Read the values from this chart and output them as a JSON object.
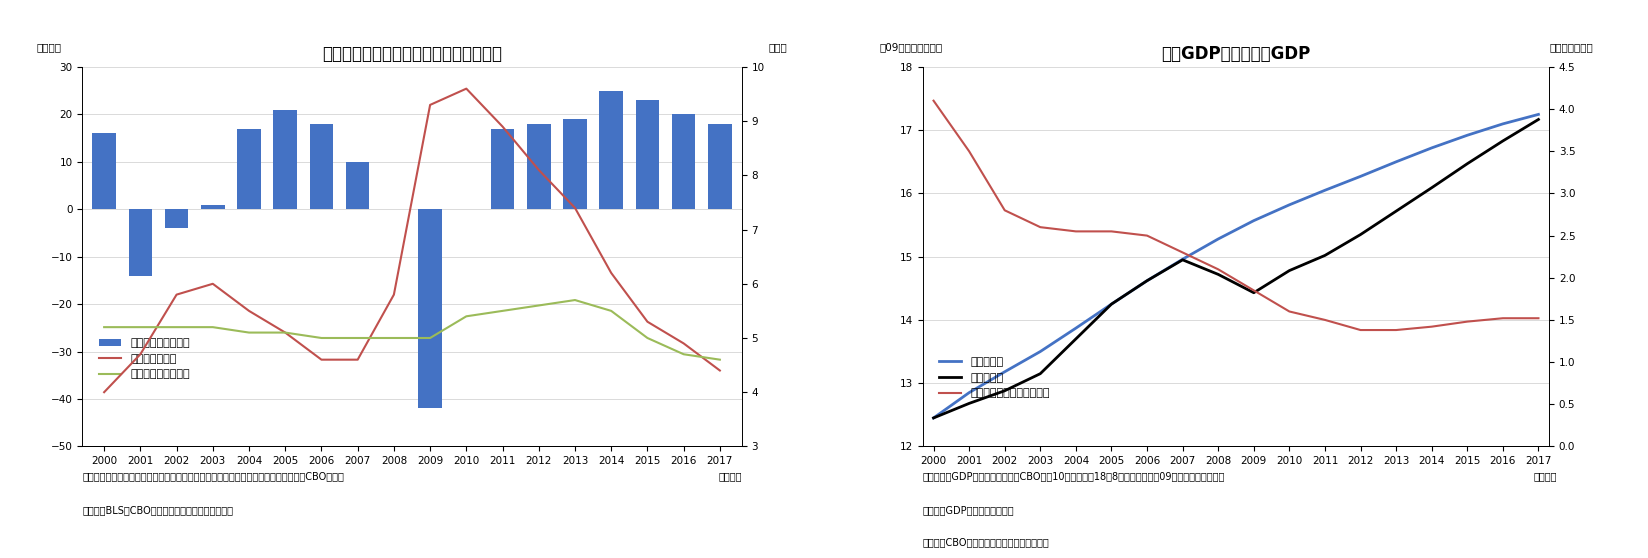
{
  "chart1": {
    "title": "非農業部門雇用者数および失業率の推移",
    "ylabel_left": "（万人）",
    "ylabel_right": "（％）",
    "xlabel": "（年次）",
    "years": [
      2000,
      2001,
      2002,
      2003,
      2004,
      2005,
      2006,
      2007,
      2008,
      2009,
      2010,
      2011,
      2012,
      2013,
      2014,
      2015,
      2016,
      2017
    ],
    "bar_values": [
      16,
      -14,
      -4,
      1,
      17,
      21,
      18,
      10,
      0,
      -42,
      0,
      17,
      18,
      19,
      25,
      23,
      20,
      18
    ],
    "bar_color": "#4472C4",
    "unemployment_rate": [
      4.0,
      4.7,
      5.8,
      6.0,
      5.5,
      5.1,
      4.6,
      4.6,
      5.8,
      9.3,
      9.6,
      8.9,
      8.1,
      7.4,
      6.2,
      5.3,
      4.9,
      4.4
    ],
    "natural_unemployment": [
      5.2,
      5.2,
      5.2,
      5.2,
      5.1,
      5.1,
      5.0,
      5.0,
      5.0,
      5.0,
      5.4,
      5.5,
      5.6,
      5.7,
      5.5,
      5.0,
      4.7,
      4.6
    ],
    "unemployment_color": "#C0504D",
    "natural_unemployment_color": "#9BBB59",
    "ylim_left": [
      -50,
      30
    ],
    "ylim_right": [
      3,
      10
    ],
    "yticks_left": [
      -50,
      -40,
      -30,
      -20,
      -10,
      0,
      10,
      20,
      30
    ],
    "yticks_right": [
      3,
      4,
      5,
      6,
      7,
      8,
      9,
      10
    ],
    "note1": "（注）非農業部門雇用者数は、雇用統計事業所調査の月間平均増減数。自然失業率はCBO試算。",
    "note2": "（資料）BLS、CBOよりニッセイ基礎研究所作成。",
    "legend_bar": "非農業部門雇用者数",
    "legend_unemp": "失業率（右軸）",
    "legend_nat": "自然失業率（右軸）"
  },
  "chart2": {
    "title": "潜在GDPおよび実績GDP",
    "ylabel_left": "（09年基準兆ドル）",
    "ylabel_right": "（前年比、％）",
    "xlabel": "（年次）",
    "years": [
      2000,
      2001,
      2002,
      2003,
      2004,
      2005,
      2006,
      2007,
      2008,
      2009,
      2010,
      2011,
      2012,
      2013,
      2014,
      2015,
      2016,
      2017
    ],
    "potential_gdp": [
      12.45,
      12.85,
      13.18,
      13.5,
      13.87,
      14.25,
      14.62,
      14.96,
      15.28,
      15.57,
      15.82,
      16.05,
      16.27,
      16.5,
      16.72,
      16.92,
      17.1,
      17.25
    ],
    "actual_gdp": [
      12.45,
      12.68,
      12.88,
      13.15,
      13.7,
      14.25,
      14.62,
      14.95,
      14.72,
      14.43,
      14.78,
      15.02,
      15.35,
      15.72,
      16.09,
      16.47,
      16.83,
      17.17
    ],
    "gdp_growth_rate": [
      4.1,
      3.5,
      2.8,
      2.6,
      2.55,
      2.55,
      2.5,
      2.3,
      2.1,
      1.85,
      1.6,
      1.5,
      1.38,
      1.38,
      1.42,
      1.48,
      1.52,
      1.52
    ],
    "potential_gdp_color": "#4472C4",
    "actual_gdp_color": "#000000",
    "gdp_growth_color": "#C0504D",
    "ylim_left": [
      12,
      18
    ],
    "ylim_right": [
      0.0,
      4.5
    ],
    "yticks_left": [
      12,
      13,
      14,
      15,
      16,
      17,
      18
    ],
    "yticks_right": [
      0.0,
      0.5,
      1.0,
      1.5,
      2.0,
      2.5,
      3.0,
      3.5,
      4.0,
      4.5
    ],
    "note1": "（注）潜在GDPは、議会予算局（CBO）の10年見通し（18年8月）での試算、09年基準実質ペース。",
    "note2": "　　潜在GDP成長率は前年比。",
    "note3": "（資料）CBOよりニッセイ基礎研究所作成。",
    "legend_pot": "潜在ＧＤＰ",
    "legend_act": "実績ＧＤＰ",
    "legend_growth": "潜在ＧＤＰ成長率（右軸）"
  },
  "background_color": "#FFFFFF",
  "font_size_title": 12,
  "font_size_tick": 7.5,
  "font_size_note": 7,
  "font_size_legend": 8,
  "font_size_ylabel": 7.5
}
